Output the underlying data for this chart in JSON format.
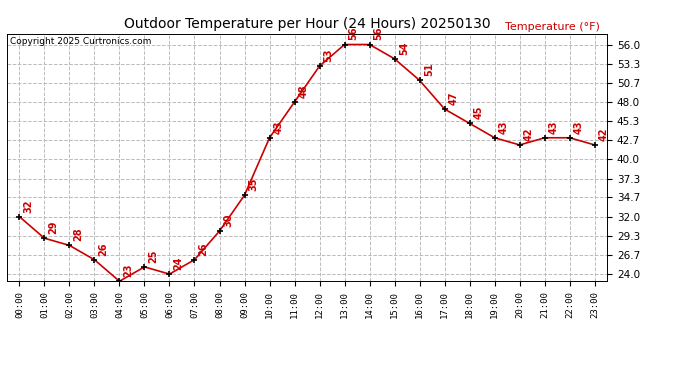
{
  "title": "Outdoor Temperature per Hour (24 Hours) 20250130",
  "copyright": "Copyright 2025 Curtronics.com",
  "ylabel": "Temperature (°F)",
  "hours": [
    0,
    1,
    2,
    3,
    4,
    5,
    6,
    7,
    8,
    9,
    10,
    11,
    12,
    13,
    14,
    15,
    16,
    17,
    18,
    19,
    20,
    21,
    22,
    23
  ],
  "temps": [
    32,
    29,
    28,
    26,
    23,
    25,
    24,
    26,
    30,
    35,
    43,
    48,
    53,
    56,
    56,
    54,
    51,
    47,
    45,
    43,
    42,
    43,
    43,
    42
  ],
  "hour_labels": [
    "00:00",
    "01:00",
    "02:00",
    "03:00",
    "04:00",
    "05:00",
    "06:00",
    "07:00",
    "08:00",
    "09:00",
    "10:00",
    "11:00",
    "12:00",
    "13:00",
    "14:00",
    "15:00",
    "16:00",
    "17:00",
    "18:00",
    "19:00",
    "20:00",
    "21:00",
    "22:00",
    "23:00"
  ],
  "yticks": [
    24.0,
    26.7,
    29.3,
    32.0,
    34.7,
    37.3,
    40.0,
    42.7,
    45.3,
    48.0,
    50.7,
    53.3,
    56.0
  ],
  "ytick_labels": [
    "24.0",
    "26.7",
    "29.3",
    "32.0",
    "34.7",
    "37.3",
    "40.0",
    "42.7",
    "45.3",
    "48.0",
    "50.7",
    "53.3",
    "56.0"
  ],
  "line_color": "#cc0000",
  "marker_color": "#000000",
  "bg_color": "#ffffff",
  "grid_color": "#bbbbbb",
  "label_color": "#cc0000",
  "copyright_color": "#000000",
  "title_color": "#000000",
  "ylim_min": 23.0,
  "ylim_max": 57.5
}
